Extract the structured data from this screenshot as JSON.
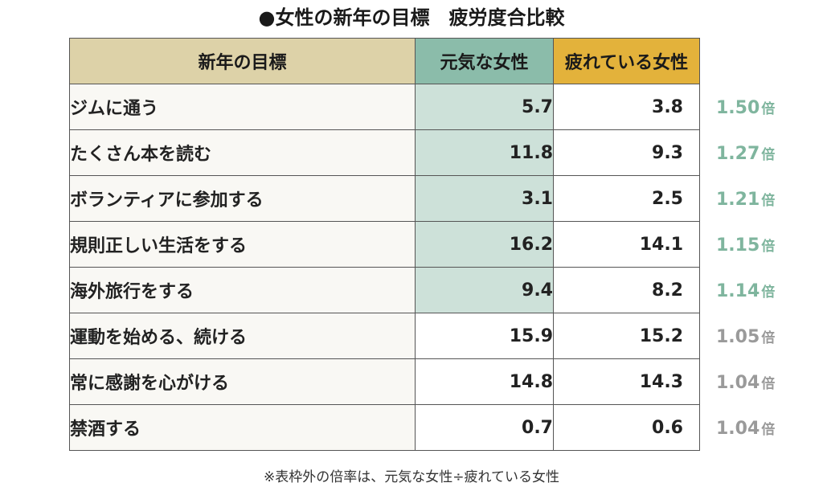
{
  "title": "●女性の新年の目標　疲労度合比較",
  "colors": {
    "header_goal_bg": "#ddd2a8",
    "header_energetic_bg": "#8bbcaa",
    "header_tired_bg": "#e3b23b",
    "highlight_cell_bg": "#cde1d9",
    "ratio_highlight": "#7fb59e",
    "ratio_normal": "#9a9a9a"
  },
  "footnote": "※表枠外の倍率は、元気な女性÷疲れている女性",
  "chart_data": {
    "type": "table",
    "columns": [
      "新年の目標",
      "元気な女性",
      "疲れている女性"
    ],
    "ratio_unit": "倍",
    "rows": [
      {
        "goal": "ジムに通う",
        "energetic": "5.7",
        "tired": "3.8",
        "ratio": "1.50",
        "highlight": true
      },
      {
        "goal": "たくさん本を読む",
        "energetic": "11.8",
        "tired": "9.3",
        "ratio": "1.27",
        "highlight": true
      },
      {
        "goal": "ボランティアに参加する",
        "energetic": "3.1",
        "tired": "2.5",
        "ratio": "1.21",
        "highlight": true
      },
      {
        "goal": "規則正しい生活をする",
        "energetic": "16.2",
        "tired": "14.1",
        "ratio": "1.15",
        "highlight": true
      },
      {
        "goal": "海外旅行をする",
        "energetic": "9.4",
        "tired": "8.2",
        "ratio": "1.14",
        "highlight": true
      },
      {
        "goal": "運動を始める、続ける",
        "energetic": "15.9",
        "tired": "15.2",
        "ratio": "1.05",
        "highlight": false
      },
      {
        "goal": "常に感謝を心がける",
        "energetic": "14.8",
        "tired": "14.3",
        "ratio": "1.04",
        "highlight": false
      },
      {
        "goal": "禁酒する",
        "energetic": "0.7",
        "tired": "0.6",
        "ratio": "1.04",
        "highlight": false
      }
    ]
  }
}
